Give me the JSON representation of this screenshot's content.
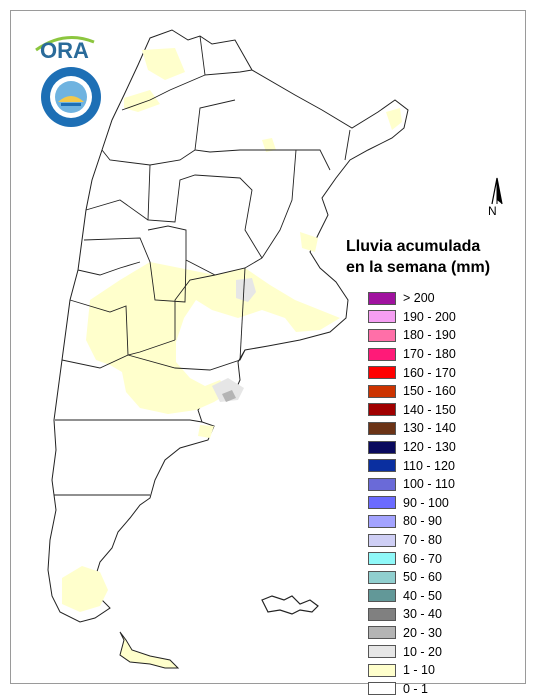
{
  "logos": {
    "ora_text": "ORA",
    "smn_ring_text": "SERVICIO METEOROLOGICO NACIONAL",
    "smn_bottom_text": "ARGENTINA"
  },
  "north_arrow": {
    "label": "N"
  },
  "legend": {
    "title_line1": "Lluvia acumulada",
    "title_line2": "en la semana (mm)",
    "items": [
      {
        "label": "> 200",
        "color": "#a0129f"
      },
      {
        "label": "190 - 200",
        "color": "#f59ef2"
      },
      {
        "label": "180 - 190",
        "color": "#ff6fa8"
      },
      {
        "label": "170 - 180",
        "color": "#ff1a78"
      },
      {
        "label": "160 - 170",
        "color": "#ff0000"
      },
      {
        "label": "150 - 160",
        "color": "#cc3300"
      },
      {
        "label": "140 - 150",
        "color": "#a00000"
      },
      {
        "label": "130 - 140",
        "color": "#6b3316"
      },
      {
        "label": "120 - 130",
        "color": "#0a0a5e"
      },
      {
        "label": "110 - 120",
        "color": "#0a2fa0"
      },
      {
        "label": "100 - 110",
        "color": "#6a6ad8"
      },
      {
        "label": "90 - 100",
        "color": "#6b6bff"
      },
      {
        "label": "80 - 90",
        "color": "#a3a3ff"
      },
      {
        "label": "70 - 80",
        "color": "#cfcff5"
      },
      {
        "label": "60 - 70",
        "color": "#8ff8f8"
      },
      {
        "label": "50 - 60",
        "color": "#90cfcf"
      },
      {
        "label": "40 - 50",
        "color": "#629898"
      },
      {
        "label": "30 - 40",
        "color": "#808080"
      },
      {
        "label": "20 - 30",
        "color": "#b4b4b4"
      },
      {
        "label": "10 - 20",
        "color": "#e6e6e6"
      },
      {
        "label": "1 - 10",
        "color": "#ffffcc"
      },
      {
        "label": "0 - 1",
        "color": "#ffffff"
      }
    ]
  },
  "map": {
    "land_color": "#ffffff",
    "rain_light_color": "#ffffcc",
    "rain_10_20_color": "#e6e6e6",
    "rain_20_30_color": "#b4b4b4",
    "border_color": "#222222"
  }
}
